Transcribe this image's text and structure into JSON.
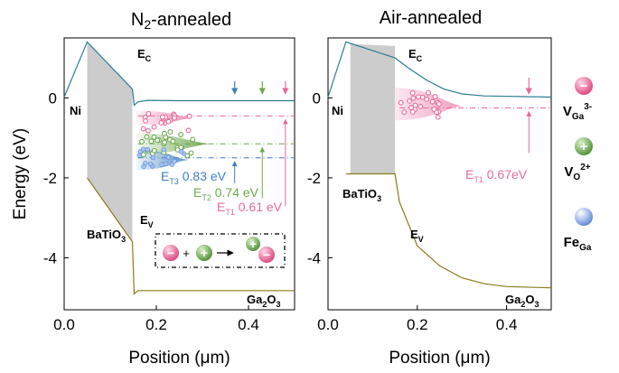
{
  "chart_data": [
    {
      "type": "line",
      "title": "N2-annealed",
      "title_main": "N",
      "title_sub": "2",
      "title_rest": "-annealed",
      "xlabel": "Position (μm)",
      "ylabel": "Energy (eV)",
      "xlim": [
        0.0,
        0.5
      ],
      "ylim": [
        -5.3,
        1.5
      ],
      "xticks": [
        "0.0",
        "0.2",
        "0.4"
      ],
      "xtick_values": [
        0.0,
        0.2,
        0.4
      ],
      "yticks": [
        "0",
        "-2",
        "-4"
      ],
      "ytick_values": [
        0,
        -2,
        -4
      ],
      "series": [
        {
          "name": "EC",
          "color": "#2a7f8f",
          "x": [
            0.0,
            0.05,
            0.148,
            0.152,
            0.16,
            0.18,
            0.25,
            0.5
          ],
          "y": [
            0.02,
            1.4,
            0.22,
            -0.18,
            -0.1,
            -0.06,
            -0.07,
            -0.07
          ]
        },
        {
          "name": "EV",
          "color": "#8a7a1e",
          "x": [
            0.05,
            0.148,
            0.152,
            0.16,
            0.25,
            0.5
          ],
          "y": [
            -2.0,
            -3.6,
            -4.9,
            -4.82,
            -4.82,
            -4.82
          ]
        }
      ],
      "trap_levels": [
        {
          "energy": -0.45,
          "color": "#e8699a"
        },
        {
          "energy": -1.15,
          "color": "#6ea84e"
        },
        {
          "energy": -1.5,
          "color": "#3c7fc0"
        }
      ],
      "labels": {
        "ni": "Ni",
        "batio3_main": "BaTiO",
        "batio3_sub": "3",
        "ga2o3_a": "Ga",
        "ga2o3_s1": "2",
        "ga2o3_b": "O",
        "ga2o3_s2": "3",
        "ec_main": "E",
        "ec_sub": "C",
        "ev_main": "E",
        "ev_sub": "V",
        "et3_main": "E",
        "et3_sub": "T3",
        "et3_value": "0.83 eV",
        "et2_main": "E",
        "et2_sub": "T2",
        "et2_value": "0.74 eV",
        "et1_main": "E",
        "et1_sub": "T1",
        "et1_value": "0.61 eV",
        "et_colors": [
          "#3c7fc0",
          "#6ea84e",
          "#e8699a"
        ]
      },
      "reaction": {
        "operators": [
          "+",
          "→"
        ]
      }
    },
    {
      "type": "line",
      "title": "Air-annealed",
      "xlabel": "Position (μm)",
      "ylabel": "",
      "xlim": [
        0.0,
        0.5
      ],
      "ylim": [
        -5.3,
        1.5
      ],
      "xticks": [
        "0.0",
        "0.2",
        "0.4"
      ],
      "xtick_values": [
        0.0,
        0.2,
        0.4
      ],
      "yticks": [
        "0",
        "-2",
        "-4"
      ],
      "ytick_values": [
        0,
        -2,
        -4
      ],
      "series": [
        {
          "name": "EC",
          "color": "#2a7f8f",
          "x": [
            0.0,
            0.04,
            0.15,
            0.18,
            0.22,
            0.26,
            0.3,
            0.35,
            0.5
          ],
          "y": [
            0.02,
            1.4,
            1.0,
            0.75,
            0.45,
            0.22,
            0.1,
            0.05,
            0.02
          ]
        },
        {
          "name": "EV",
          "color": "#8a7a1e",
          "x": [
            0.04,
            0.15,
            0.16,
            0.2,
            0.25,
            0.3,
            0.35,
            0.4,
            0.5
          ],
          "y": [
            -1.9,
            -1.9,
            -2.6,
            -3.7,
            -4.2,
            -4.5,
            -4.65,
            -4.72,
            -4.75
          ]
        }
      ],
      "trap_levels": [
        {
          "energy": -0.25,
          "color": "#e8699a"
        }
      ],
      "labels": {
        "ni": "Ni",
        "batio3_main": "BaTiO",
        "batio3_sub": "3",
        "ga2o3_a": "Ga",
        "ga2o3_s1": "2",
        "ga2o3_b": "O",
        "ga2o3_s2": "3",
        "ec_main": "E",
        "ec_sub": "C",
        "ev_main": "E",
        "ev_sub": "V",
        "et1_main": "E",
        "et1_sub": "T1",
        "et1_value": "0.67eV"
      }
    }
  ],
  "legend": {
    "placement": "right",
    "items": [
      {
        "symbol": "−",
        "color": "#e8699a",
        "label_main": "V",
        "label_sub": "Ga",
        "label_sup": "3-"
      },
      {
        "symbol": "+",
        "color": "#6ea84e",
        "label_main": "V",
        "label_sub": "O",
        "label_sup": "2+"
      },
      {
        "symbol": "",
        "color": "#7fa3e0",
        "label_main": "Fe",
        "label_sub": "Ga",
        "label_sup": ""
      }
    ]
  },
  "colors": {
    "ec": "#2a7f8f",
    "ev": "#8a7a1e",
    "barrier": "#cccccc",
    "vga": "#e8699a",
    "vo": "#6ea84e",
    "fe": "#3c7fc0"
  }
}
